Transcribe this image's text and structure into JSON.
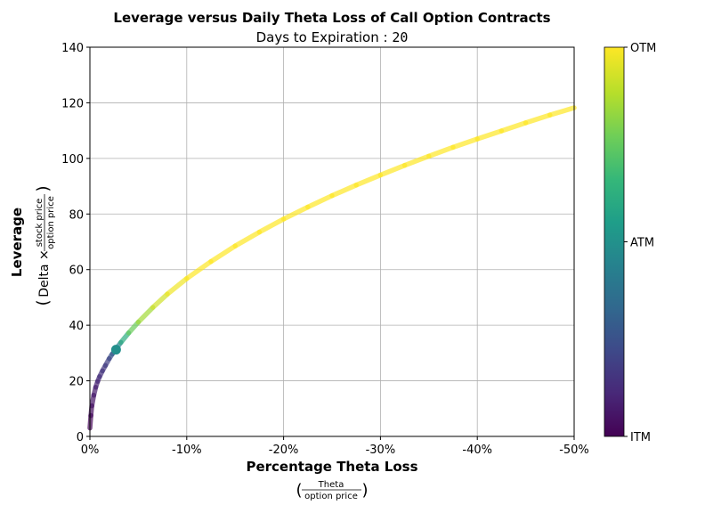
{
  "chart_data": {
    "type": "line",
    "title": "Leverage versus Daily Theta Loss of Call Option Contracts",
    "subtitle_label": "Days to Expiration",
    "subtitle_value": "20",
    "xlabel": "Percentage Theta Loss",
    "xlabel_sub_numerator": "Theta",
    "xlabel_sub_denominator": "option price",
    "ylabel": "Leverage",
    "ylabel_sub_prefix": "Delta ×",
    "ylabel_sub_numerator": "stock price",
    "ylabel_sub_denominator": "option price",
    "x_ticks": [
      "0%",
      "-10%",
      "-20%",
      "-30%",
      "-40%",
      "-50%"
    ],
    "x_tick_values": [
      0,
      -10,
      -20,
      -30,
      -40,
      -50
    ],
    "y_ticks": [
      "0",
      "20",
      "40",
      "60",
      "80",
      "100",
      "120",
      "140"
    ],
    "y_tick_values": [
      0,
      20,
      40,
      60,
      80,
      100,
      120,
      140
    ],
    "xlim": [
      0,
      -50
    ],
    "ylim": [
      0,
      140
    ],
    "grid": true,
    "colormap": "viridis",
    "colorbar": {
      "labels": [
        "OTM",
        "ATM",
        "ITM"
      ],
      "label_levels": [
        1.0,
        0.5,
        0.0
      ],
      "colors": [
        "#440154",
        "#482878",
        "#3e4989",
        "#31688e",
        "#26828e",
        "#1f9e89",
        "#35b779",
        "#6ece58",
        "#b5de2b",
        "#fde725"
      ]
    },
    "series": [
      {
        "x": [
          0.0,
          -0.1,
          -0.2,
          -0.4,
          -0.6,
          -0.8,
          -1.0,
          -1.3,
          -1.6,
          -2.0,
          -2.3,
          -2.7,
          -3.2,
          -4.0,
          -5.0,
          -6.5,
          -8.0,
          -10.0,
          -12.5,
          -15.0,
          -17.5,
          -20.0,
          -22.5,
          -25.0,
          -27.5,
          -30.0,
          -32.5,
          -35.0,
          -37.5,
          -40.0,
          -42.5,
          -45.0,
          -47.5,
          -50.0
        ],
        "y": [
          3.0,
          7.5,
          11.0,
          14.8,
          17.7,
          19.8,
          21.5,
          23.6,
          25.5,
          28.0,
          29.6,
          31.5,
          33.8,
          37.2,
          41.1,
          46.4,
          51.2,
          56.8,
          62.9,
          68.5,
          73.5,
          78.2,
          82.5,
          86.6,
          90.4,
          94.0,
          97.5,
          100.8,
          104.0,
          107.0,
          109.9,
          112.8,
          115.6,
          118.2
        ],
        "moneyness": [
          0.0,
          0.02,
          0.04,
          0.07,
          0.09,
          0.11,
          0.13,
          0.15,
          0.17,
          0.2,
          0.26,
          0.36,
          0.52,
          0.72,
          0.82,
          0.9,
          0.96,
          1.0,
          1.0,
          1.0,
          1.0,
          1.0,
          1.0,
          1.0,
          1.0,
          1.0,
          1.0,
          1.0,
          1.0,
          1.0,
          1.0,
          1.0,
          1.0,
          1.0
        ]
      }
    ],
    "marker": {
      "x": -2.7,
      "y": 31.2,
      "level": 0.5
    }
  }
}
